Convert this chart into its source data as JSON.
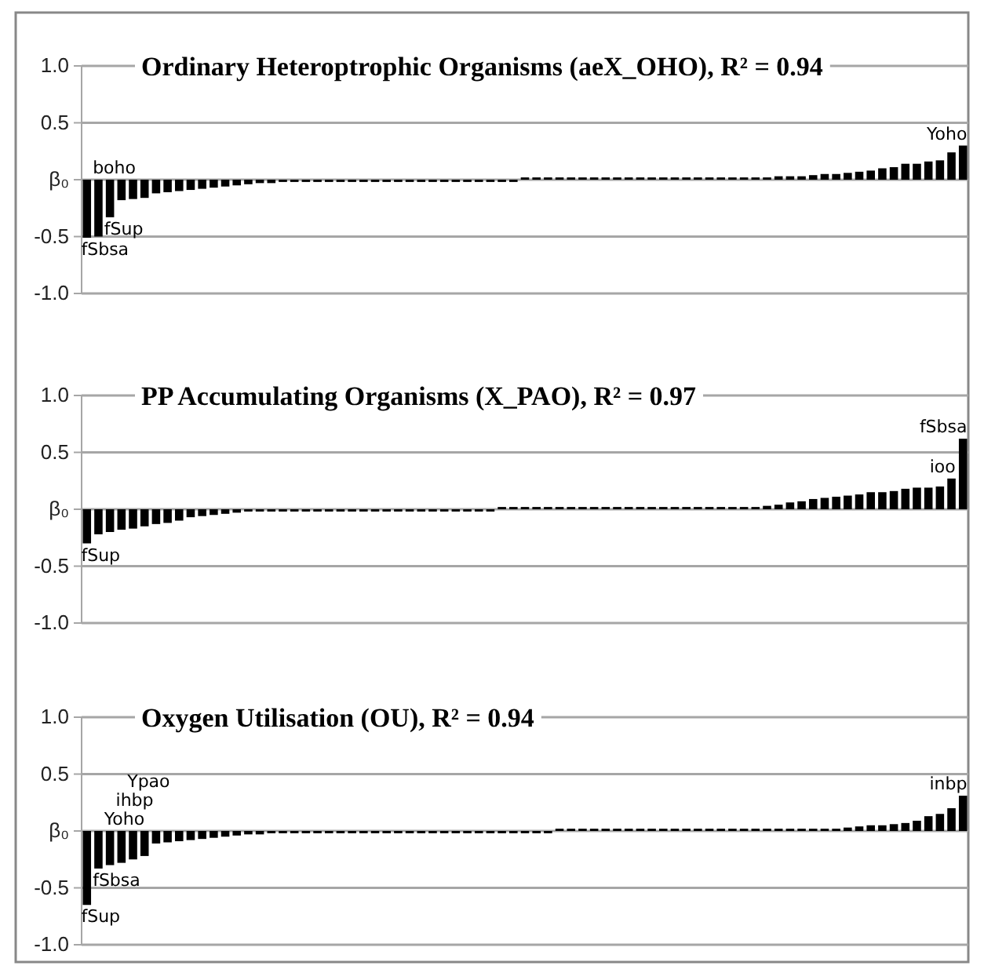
{
  "chart_data": [
    {
      "type": "bar",
      "title": "Ordinary Heteroptrophic Organisms (aeX_OHO), R² = 0.94",
      "color": "#000000",
      "ylim": [
        -1,
        1
      ],
      "yticks": [
        {
          "value": -1,
          "label": "-1.0"
        },
        {
          "value": -0.5,
          "label": "-0.5"
        },
        {
          "value": 0,
          "label": "β₀"
        },
        {
          "value": 0.5,
          "label": "0.5"
        },
        {
          "value": 1,
          "label": "1.0"
        }
      ],
      "grid": "y",
      "categories": [
        null,
        null,
        null,
        null,
        null,
        null,
        null,
        null,
        null,
        null,
        null,
        null,
        null,
        null,
        null,
        null,
        null,
        null,
        null,
        null,
        null,
        null,
        null,
        null,
        null,
        null,
        null,
        null,
        null,
        null,
        null,
        null,
        null,
        null,
        null,
        null,
        null,
        null,
        null,
        null,
        null,
        null,
        null,
        null,
        null,
        null,
        null,
        null,
        null,
        null,
        null,
        null,
        null,
        null,
        null,
        null,
        null,
        null,
        null,
        null,
        null,
        null,
        null,
        null,
        null,
        null,
        null,
        null,
        null,
        null,
        null,
        null,
        null,
        null,
        null,
        null,
        null
      ],
      "values": [
        -0.51,
        -0.5,
        -0.33,
        -0.18,
        -0.17,
        -0.16,
        -0.12,
        -0.11,
        -0.1,
        -0.09,
        -0.08,
        -0.07,
        -0.06,
        -0.05,
        -0.04,
        -0.03,
        -0.03,
        -0.02,
        -0.02,
        -0.02,
        -0.02,
        -0.02,
        -0.02,
        -0.02,
        -0.02,
        -0.02,
        -0.02,
        -0.02,
        -0.02,
        -0.02,
        -0.02,
        -0.02,
        -0.02,
        -0.02,
        -0.02,
        -0.02,
        -0.02,
        -0.02,
        0.02,
        0.02,
        0.02,
        0.02,
        0.02,
        0.02,
        0.02,
        0.02,
        0.02,
        0.02,
        0.02,
        0.02,
        0.02,
        0.02,
        0.02,
        0.02,
        0.02,
        0.02,
        0.02,
        0.02,
        0.02,
        0.02,
        0.03,
        0.03,
        0.03,
        0.04,
        0.05,
        0.05,
        0.06,
        0.07,
        0.08,
        0.1,
        0.11,
        0.14,
        0.14,
        0.16,
        0.17,
        0.24,
        0.3
      ],
      "value_labels": [
        "fSbsa",
        "boho",
        "fSup",
        null,
        null,
        null,
        null,
        null,
        null,
        null,
        null,
        null,
        null,
        null,
        null,
        null,
        null,
        null,
        null,
        null,
        null,
        null,
        null,
        null,
        null,
        null,
        null,
        null,
        null,
        null,
        null,
        null,
        null,
        null,
        null,
        null,
        null,
        null,
        null,
        null,
        null,
        null,
        null,
        null,
        null,
        null,
        null,
        null,
        null,
        null,
        null,
        null,
        null,
        null,
        null,
        null,
        null,
        null,
        null,
        null,
        null,
        null,
        null,
        null,
        null,
        null,
        null,
        null,
        null,
        null,
        null,
        null,
        null,
        null,
        null,
        null,
        "Yoho"
      ]
    },
    {
      "type": "bar",
      "title": "PP Accumulating Organisms (X_PAO), R² = 0.97",
      "color": "#000000",
      "ylim": [
        -1,
        1
      ],
      "yticks": [
        {
          "value": -1,
          "label": "-1.0"
        },
        {
          "value": -0.5,
          "label": "-0.5"
        },
        {
          "value": 0,
          "label": "β₀"
        },
        {
          "value": 0.5,
          "label": "0.5"
        },
        {
          "value": 1,
          "label": "1.0"
        }
      ],
      "grid": "y",
      "categories": [
        null,
        null,
        null,
        null,
        null,
        null,
        null,
        null,
        null,
        null,
        null,
        null,
        null,
        null,
        null,
        null,
        null,
        null,
        null,
        null,
        null,
        null,
        null,
        null,
        null,
        null,
        null,
        null,
        null,
        null,
        null,
        null,
        null,
        null,
        null,
        null,
        null,
        null,
        null,
        null,
        null,
        null,
        null,
        null,
        null,
        null,
        null,
        null,
        null,
        null,
        null,
        null,
        null,
        null,
        null,
        null,
        null,
        null,
        null,
        null,
        null,
        null,
        null,
        null,
        null,
        null,
        null,
        null,
        null,
        null,
        null,
        null,
        null,
        null,
        null,
        null,
        null
      ],
      "values": [
        -0.3,
        -0.22,
        -0.2,
        -0.18,
        -0.17,
        -0.15,
        -0.13,
        -0.12,
        -0.1,
        -0.07,
        -0.06,
        -0.05,
        -0.04,
        -0.03,
        -0.02,
        -0.02,
        -0.02,
        -0.02,
        -0.02,
        -0.02,
        -0.02,
        -0.02,
        -0.02,
        -0.02,
        -0.02,
        -0.02,
        -0.02,
        -0.02,
        -0.02,
        -0.02,
        -0.02,
        -0.02,
        -0.02,
        -0.02,
        -0.02,
        -0.02,
        0.02,
        0.02,
        0.02,
        0.02,
        0.02,
        0.02,
        0.02,
        0.02,
        0.02,
        0.02,
        0.02,
        0.02,
        0.02,
        0.02,
        0.02,
        0.02,
        0.02,
        0.02,
        0.02,
        0.02,
        0.02,
        0.02,
        0.02,
        0.03,
        0.04,
        0.06,
        0.07,
        0.09,
        0.1,
        0.11,
        0.12,
        0.13,
        0.15,
        0.15,
        0.16,
        0.18,
        0.19,
        0.19,
        0.2,
        0.27,
        0.62
      ],
      "value_labels": [
        "fSup",
        null,
        null,
        null,
        null,
        null,
        null,
        null,
        null,
        null,
        null,
        null,
        null,
        null,
        null,
        null,
        null,
        null,
        null,
        null,
        null,
        null,
        null,
        null,
        null,
        null,
        null,
        null,
        null,
        null,
        null,
        null,
        null,
        null,
        null,
        null,
        null,
        null,
        null,
        null,
        null,
        null,
        null,
        null,
        null,
        null,
        null,
        null,
        null,
        null,
        null,
        null,
        null,
        null,
        null,
        null,
        null,
        null,
        null,
        null,
        null,
        null,
        null,
        null,
        null,
        null,
        null,
        null,
        null,
        null,
        null,
        null,
        null,
        null,
        null,
        "ioo",
        "fSbsa"
      ]
    },
    {
      "type": "bar",
      "title": "Oxygen Utilisation (OU), R² = 0.94",
      "color": "#000000",
      "ylim": [
        -1,
        1
      ],
      "yticks": [
        {
          "value": -1,
          "label": "-1.0"
        },
        {
          "value": -0.5,
          "label": "-0.5"
        },
        {
          "value": 0,
          "label": "β₀"
        },
        {
          "value": 0.5,
          "label": "0.5"
        },
        {
          "value": 1,
          "label": "1.0"
        }
      ],
      "grid": "y",
      "categories": [
        null,
        null,
        null,
        null,
        null,
        null,
        null,
        null,
        null,
        null,
        null,
        null,
        null,
        null,
        null,
        null,
        null,
        null,
        null,
        null,
        null,
        null,
        null,
        null,
        null,
        null,
        null,
        null,
        null,
        null,
        null,
        null,
        null,
        null,
        null,
        null,
        null,
        null,
        null,
        null,
        null,
        null,
        null,
        null,
        null,
        null,
        null,
        null,
        null,
        null,
        null,
        null,
        null,
        null,
        null,
        null,
        null,
        null,
        null,
        null,
        null,
        null,
        null,
        null,
        null,
        null,
        null,
        null,
        null,
        null,
        null,
        null,
        null,
        null,
        null,
        null,
        null
      ],
      "values": [
        -0.65,
        -0.33,
        -0.3,
        -0.28,
        -0.25,
        -0.22,
        -0.11,
        -0.1,
        -0.09,
        -0.08,
        -0.07,
        -0.06,
        -0.05,
        -0.04,
        -0.03,
        -0.03,
        -0.02,
        -0.02,
        -0.02,
        -0.02,
        -0.02,
        -0.02,
        -0.02,
        -0.02,
        -0.02,
        -0.02,
        -0.02,
        -0.02,
        -0.02,
        -0.02,
        -0.02,
        -0.02,
        -0.02,
        -0.02,
        -0.02,
        -0.02,
        -0.02,
        -0.02,
        -0.02,
        -0.02,
        -0.02,
        0.02,
        0.02,
        0.02,
        0.02,
        0.02,
        0.02,
        0.02,
        0.02,
        0.02,
        0.02,
        0.02,
        0.02,
        0.02,
        0.02,
        0.02,
        0.02,
        0.02,
        0.02,
        0.02,
        0.02,
        0.02,
        0.02,
        0.02,
        0.02,
        0.02,
        0.03,
        0.04,
        0.05,
        0.05,
        0.06,
        0.07,
        0.09,
        0.13,
        0.15,
        0.2,
        0.31
      ],
      "value_labels": [
        "fSup",
        "fSbsa",
        "Yoho",
        "ihbp",
        "Ypao",
        null,
        null,
        null,
        null,
        null,
        null,
        null,
        null,
        null,
        null,
        null,
        null,
        null,
        null,
        null,
        null,
        null,
        null,
        null,
        null,
        null,
        null,
        null,
        null,
        null,
        null,
        null,
        null,
        null,
        null,
        null,
        null,
        null,
        null,
        null,
        null,
        null,
        null,
        null,
        null,
        null,
        null,
        null,
        null,
        null,
        null,
        null,
        null,
        null,
        null,
        null,
        null,
        null,
        null,
        null,
        null,
        null,
        null,
        null,
        null,
        null,
        null,
        null,
        null,
        null,
        null,
        null,
        null,
        null,
        null,
        null,
        "inbp"
      ]
    }
  ]
}
